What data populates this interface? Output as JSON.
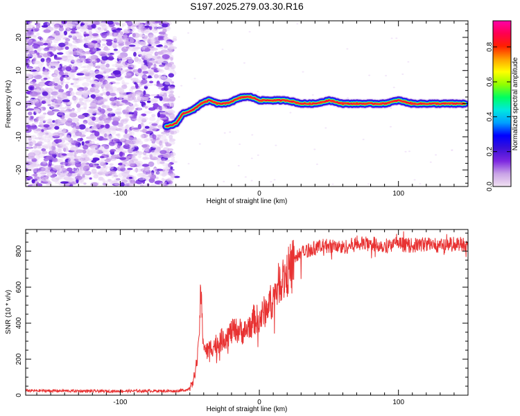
{
  "title": "S197.2025.279.03.30.R16",
  "chart_data": [
    {
      "type": "heatmap",
      "name": "spectrogram",
      "title": "S197.2025.279.03.30.R16",
      "xlabel": "Height of straight line (km)",
      "ylabel": "Frequency (Hz)",
      "xlim": [
        -168,
        150
      ],
      "ylim": [
        -25,
        25
      ],
      "xticks": [
        -100,
        0,
        100
      ],
      "yticks": [
        -20,
        -10,
        0,
        10,
        20
      ],
      "noise_region_x": [
        -168,
        -62
      ],
      "signal_track": {
        "x": [
          -67,
          -60,
          -55,
          -48,
          -42,
          -36,
          -30,
          -24,
          -18,
          -12,
          -6,
          0,
          10,
          20,
          30,
          40,
          50,
          60,
          70,
          80,
          90,
          100,
          110,
          120,
          130,
          140,
          148
        ],
        "freq": [
          -7,
          -6,
          -3,
          -2,
          0,
          1,
          0,
          0,
          1,
          2,
          2,
          1,
          1,
          1,
          0,
          0,
          1,
          0,
          0,
          0,
          0,
          1,
          0,
          0,
          0,
          0,
          0
        ]
      },
      "colorbar": {
        "label": "Normalized spectral amplitude",
        "range": [
          0.0,
          0.95
        ],
        "ticks": [
          "0.0",
          "0.2",
          "0.4",
          "0.6",
          "0.8"
        ],
        "colors": [
          "#f2e2f2",
          "#c9a3e6",
          "#7d27e0",
          "#3a10d8",
          "#0000ff",
          "#00a0ff",
          "#00e8e0",
          "#00ff60",
          "#90ff00",
          "#ffff00",
          "#ffa000",
          "#ff2000",
          "#ff0050",
          "#ff00a8"
        ]
      }
    },
    {
      "type": "line",
      "name": "snr",
      "xlabel": "Height of straight line (km)",
      "ylabel": "SNR (10 * v/v)",
      "xlim": [
        -168,
        150
      ],
      "ylim": [
        0,
        920
      ],
      "xticks": [
        -100,
        0,
        100
      ],
      "yticks": [
        0,
        200,
        400,
        600,
        800
      ],
      "color": "#e83232",
      "series": [
        {
          "name": "SNR",
          "x": [
            -168,
            -140,
            -110,
            -80,
            -60,
            -52,
            -48,
            -46,
            -44,
            -42,
            -41,
            -40,
            -38,
            -34,
            -30,
            -25,
            -20,
            -15,
            -10,
            -5,
            0,
            5,
            10,
            15,
            20,
            25,
            30,
            40,
            50,
            60,
            70,
            80,
            90,
            100,
            110,
            120,
            130,
            140,
            150
          ],
          "y": [
            25,
            24,
            22,
            24,
            23,
            30,
            60,
            140,
            230,
            580,
            380,
            290,
            240,
            270,
            290,
            320,
            350,
            360,
            350,
            420,
            420,
            480,
            540,
            640,
            680,
            750,
            790,
            820,
            830,
            820,
            840,
            840,
            830,
            840,
            830,
            840,
            830,
            840,
            840
          ]
        }
      ]
    }
  ]
}
